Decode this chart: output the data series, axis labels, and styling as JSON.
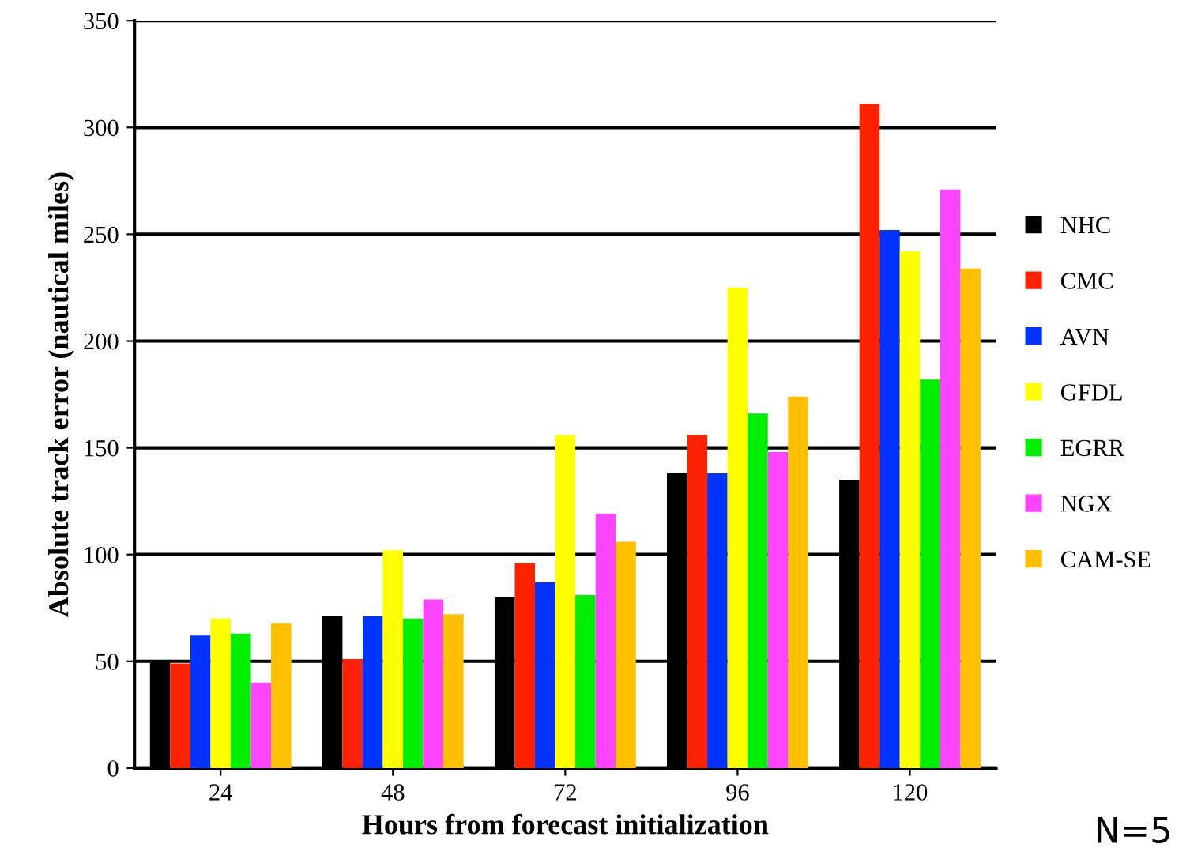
{
  "chart_data": {
    "type": "bar",
    "xlabel": "Hours from forecast initialization",
    "ylabel": "Absolute track error (nautical miles)",
    "categories": [
      "24",
      "48",
      "72",
      "96",
      "120"
    ],
    "series": [
      {
        "name": "NHC",
        "color": "#000000",
        "values": [
          50,
          71,
          80,
          138,
          135
        ]
      },
      {
        "name": "CMC",
        "color": "#ff2200",
        "values": [
          49,
          51,
          96,
          156,
          311
        ]
      },
      {
        "name": "AVN",
        "color": "#0033ff",
        "values": [
          62,
          71,
          87,
          138,
          252
        ]
      },
      {
        "name": "GFDL",
        "color": "#ffff00",
        "values": [
          70,
          102,
          156,
          225,
          242
        ]
      },
      {
        "name": "EGRR",
        "color": "#00ee00",
        "values": [
          63,
          70,
          81,
          166,
          182
        ]
      },
      {
        "name": "NGX",
        "color": "#ff44ff",
        "values": [
          40,
          79,
          119,
          148,
          271
        ]
      },
      {
        "name": "CAM-SE",
        "color": "#ffc000",
        "values": [
          68,
          72,
          106,
          174,
          234
        ]
      }
    ],
    "ylim": [
      0,
      350
    ],
    "yticks": [
      0,
      50,
      100,
      150,
      200,
      250,
      300,
      350
    ],
    "grid": "y",
    "legend": "right",
    "annotations": [
      "N=5"
    ]
  }
}
